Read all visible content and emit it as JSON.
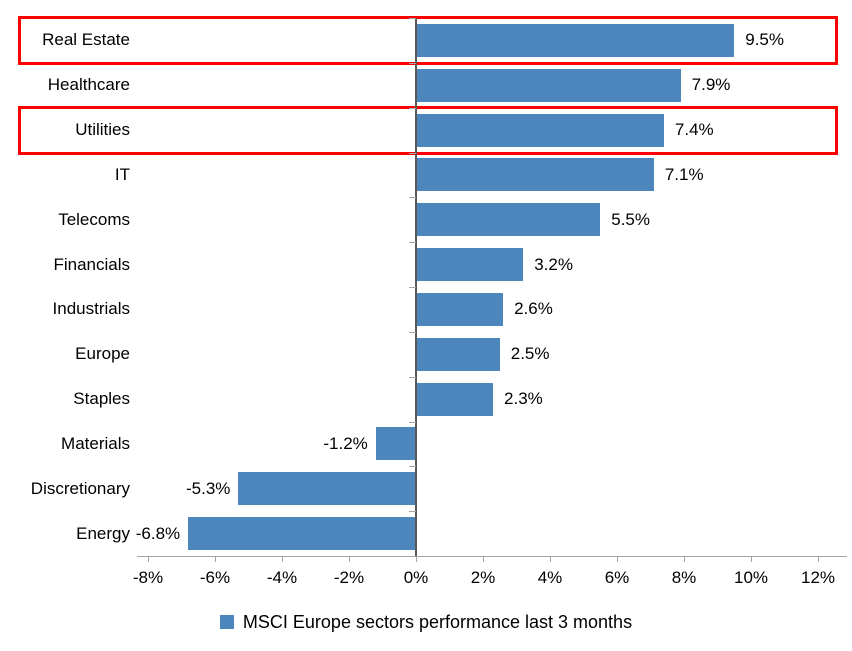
{
  "chart_data": {
    "type": "bar",
    "orientation": "horizontal",
    "title": "",
    "xlabel": "",
    "ylabel": "",
    "categories": [
      "Real Estate",
      "Healthcare",
      "Utilities",
      "IT",
      "Telecoms",
      "Financials",
      "Industrials",
      "Europe",
      "Staples",
      "Materials",
      "Discretionary",
      "Energy"
    ],
    "values": [
      9.5,
      7.9,
      7.4,
      7.1,
      5.5,
      3.2,
      2.6,
      2.5,
      2.3,
      -1.2,
      -5.3,
      -6.8
    ],
    "value_labels": [
      "9.5%",
      "7.9%",
      "7.4%",
      "7.1%",
      "5.5%",
      "3.2%",
      "2.6%",
      "2.5%",
      "2.3%",
      "-1.2%",
      "-5.3%",
      "-6.8%"
    ],
    "xlim": [
      -8,
      12
    ],
    "x_tick_values": [
      -8,
      -6,
      -4,
      -2,
      0,
      2,
      4,
      6,
      8,
      10,
      12
    ],
    "x_tick_labels": [
      "-8%",
      "-6%",
      "-4%",
      "-2%",
      "0%",
      "2%",
      "4%",
      "6%",
      "8%",
      "10%",
      "12%"
    ],
    "grid": false,
    "legend_position": "bottom",
    "legend": "MSCI Europe sectors performance last 3 months",
    "highlighted_categories": [
      "Real Estate",
      "Utilities"
    ],
    "colors": {
      "bar": "#4D86BC",
      "highlight_border": "#FF0000",
      "axis_line": "#A6A6A6",
      "zero_line": "#595959",
      "text": "#000000"
    }
  }
}
